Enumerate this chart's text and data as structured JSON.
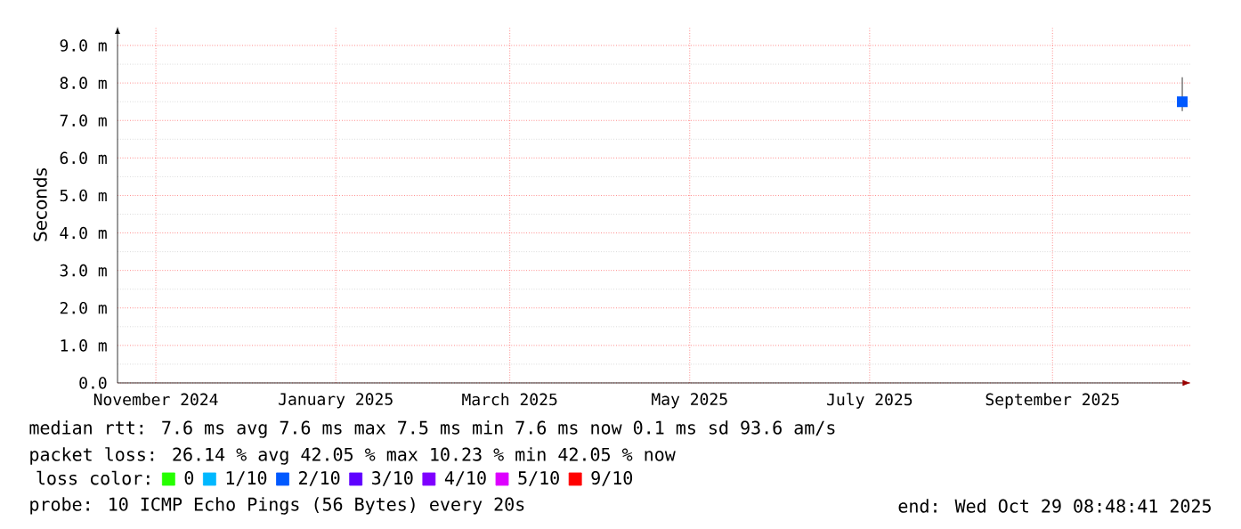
{
  "chart_data": {
    "type": "scatter",
    "ylabel": "Seconds",
    "legend_title": "loss color:",
    "xlim": [
      "2024-10-19",
      "2025-10-18"
    ],
    "xticks": [
      {
        "value": "2024-11-01",
        "label": "November 2024"
      },
      {
        "value": "2025-01-01",
        "label": "January 2025"
      },
      {
        "value": "2025-03-01",
        "label": "March 2025"
      },
      {
        "value": "2025-05-01",
        "label": "May 2025"
      },
      {
        "value": "2025-07-01",
        "label": "July 2025"
      },
      {
        "value": "2025-09-01",
        "label": "September 2025"
      }
    ],
    "ylim": [
      0,
      9.5
    ],
    "yticks": [
      {
        "value": 0,
        "label": "0.0"
      },
      {
        "value": 1,
        "label": "1.0 m"
      },
      {
        "value": 2,
        "label": "2.0 m"
      },
      {
        "value": 3,
        "label": "3.0 m"
      },
      {
        "value": 4,
        "label": "4.0 m"
      },
      {
        "value": 5,
        "label": "5.0 m"
      },
      {
        "value": 6,
        "label": "6.0 m"
      },
      {
        "value": 7,
        "label": "7.0 m"
      },
      {
        "value": 8,
        "label": "8.0 m"
      },
      {
        "value": 9,
        "label": "9.0 m"
      }
    ],
    "grid": true,
    "legend": "bottom left",
    "x": [
      "2025-10-15"
    ],
    "series": [
      {
        "name": "0",
        "color": "#26ff00",
        "values": [
          null
        ]
      },
      {
        "name": "1/10",
        "color": "#00b8ff",
        "values": [
          null
        ]
      },
      {
        "name": "2/10",
        "color": "#0059ff",
        "values": [
          7.5
        ],
        "errors": [
          [
            7.25,
            8.15
          ]
        ]
      },
      {
        "name": "3/10",
        "color": "#5e00ff",
        "values": [
          null
        ]
      },
      {
        "name": "4/10",
        "color": "#7e00ff",
        "values": [
          null
        ]
      },
      {
        "name": "5/10",
        "color": "#dd00ff",
        "values": [
          null
        ]
      },
      {
        "name": "9/10",
        "color": "#ff0000",
        "values": [
          null
        ]
      }
    ],
    "annotations": [
      "median rtt:  7.6 ms avg  7.6 ms max  7.5 ms min  7.6 ms now  0.1 ms sd  93.6   am/s",
      "packet loss: 26.14 % avg  42.05 % max  10.23 % min  42.05 % now",
      "probe:       10 ICMP Echo Pings (56 Bytes) every 20s",
      "end: Wed Oct 29 08:48:41 2025"
    ]
  }
}
